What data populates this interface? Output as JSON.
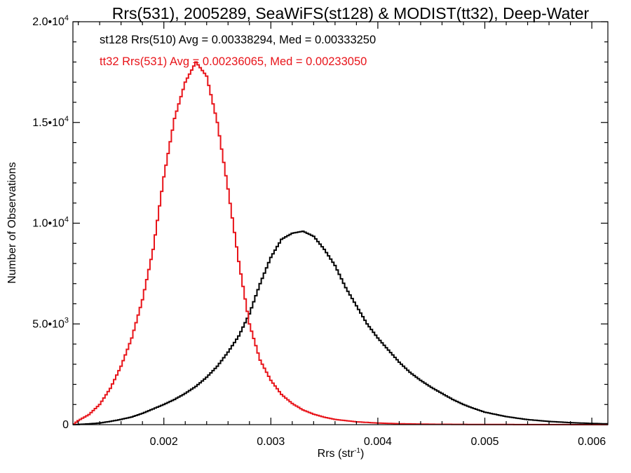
{
  "chart_data": {
    "type": "line",
    "title": "Rrs(531), 2005289, SeaWiFS(st128) & MODIST(tt32), Deep-Water",
    "xlabel": "Rrs (str",
    "xlabel_exp": "-1",
    "xlabel_close": ")",
    "ylabel": "Number of Observations",
    "xlim": [
      0.00115,
      0.00615
    ],
    "ylim": [
      0,
      20000
    ],
    "grid": false,
    "x_ticks": [
      {
        "value": 0.002,
        "label": "0.002"
      },
      {
        "value": 0.003,
        "label": "0.003"
      },
      {
        "value": 0.004,
        "label": "0.004"
      },
      {
        "value": 0.005,
        "label": "0.005"
      },
      {
        "value": 0.006,
        "label": "0.006"
      }
    ],
    "y_ticks": [
      {
        "value": 0,
        "mant": "0",
        "exp": ""
      },
      {
        "value": 5000,
        "mant": "5.0•10",
        "exp": "3"
      },
      {
        "value": 10000,
        "mant": "1.0•10",
        "exp": "4"
      },
      {
        "value": 15000,
        "mant": "1.5•10",
        "exp": "4"
      },
      {
        "value": 20000,
        "mant": "2.0•10",
        "exp": "4"
      }
    ],
    "annotations": [
      {
        "text": "st128 Rrs(510) Avg = 0.00338294, Med = 0.00333250",
        "color": "#000000"
      },
      {
        "text": "tt32 Rrs(531) Avg = 0.00236065, Med = 0.00233050",
        "color": "#e8141a"
      }
    ],
    "series": [
      {
        "color": "#000000",
        "x": [
          0.00115,
          0.0012,
          0.0013,
          0.0014,
          0.0015,
          0.0016,
          0.0017,
          0.0018,
          0.0019,
          0.002,
          0.0021,
          0.0022,
          0.0023,
          0.0024,
          0.0025,
          0.0026,
          0.0027,
          0.0028,
          0.0029,
          0.003,
          0.0031,
          0.0032,
          0.0033,
          0.0034,
          0.0035,
          0.0036,
          0.0037,
          0.0038,
          0.0039,
          0.004,
          0.0041,
          0.0042,
          0.0043,
          0.0044,
          0.0045,
          0.0046,
          0.0047,
          0.0048,
          0.0049,
          0.005,
          0.0052,
          0.0054,
          0.0056,
          0.0058,
          0.006,
          0.00615
        ],
        "values": [
          0,
          10,
          40,
          80,
          160,
          260,
          380,
          560,
          780,
          1000,
          1250,
          1550,
          1900,
          2350,
          2900,
          3600,
          4400,
          5500,
          7000,
          8300,
          9200,
          9500,
          9600,
          9350,
          8700,
          7900,
          6800,
          5900,
          5000,
          4300,
          3700,
          3100,
          2600,
          2200,
          1850,
          1550,
          1250,
          1000,
          800,
          620,
          400,
          250,
          160,
          100,
          60,
          40
        ]
      },
      {
        "color": "#e8141a",
        "x": [
          0.00115,
          0.0012,
          0.0013,
          0.0014,
          0.0015,
          0.0016,
          0.0017,
          0.0018,
          0.0019,
          0.002,
          0.0021,
          0.0022,
          0.0023,
          0.0024,
          0.0025,
          0.0026,
          0.0027,
          0.0028,
          0.0029,
          0.003,
          0.0031,
          0.0032,
          0.0033,
          0.0034,
          0.0035,
          0.0036,
          0.0038,
          0.004,
          0.0042,
          0.0045,
          0.005,
          0.0055,
          0.006,
          0.00615
        ],
        "values": [
          0,
          200,
          500,
          1000,
          1800,
          2900,
          4300,
          6200,
          8700,
          12300,
          15200,
          17000,
          18000,
          17300,
          15000,
          11700,
          8100,
          5000,
          3200,
          2200,
          1500,
          1050,
          730,
          520,
          370,
          260,
          140,
          80,
          45,
          20,
          8,
          3,
          1,
          0
        ]
      }
    ]
  }
}
